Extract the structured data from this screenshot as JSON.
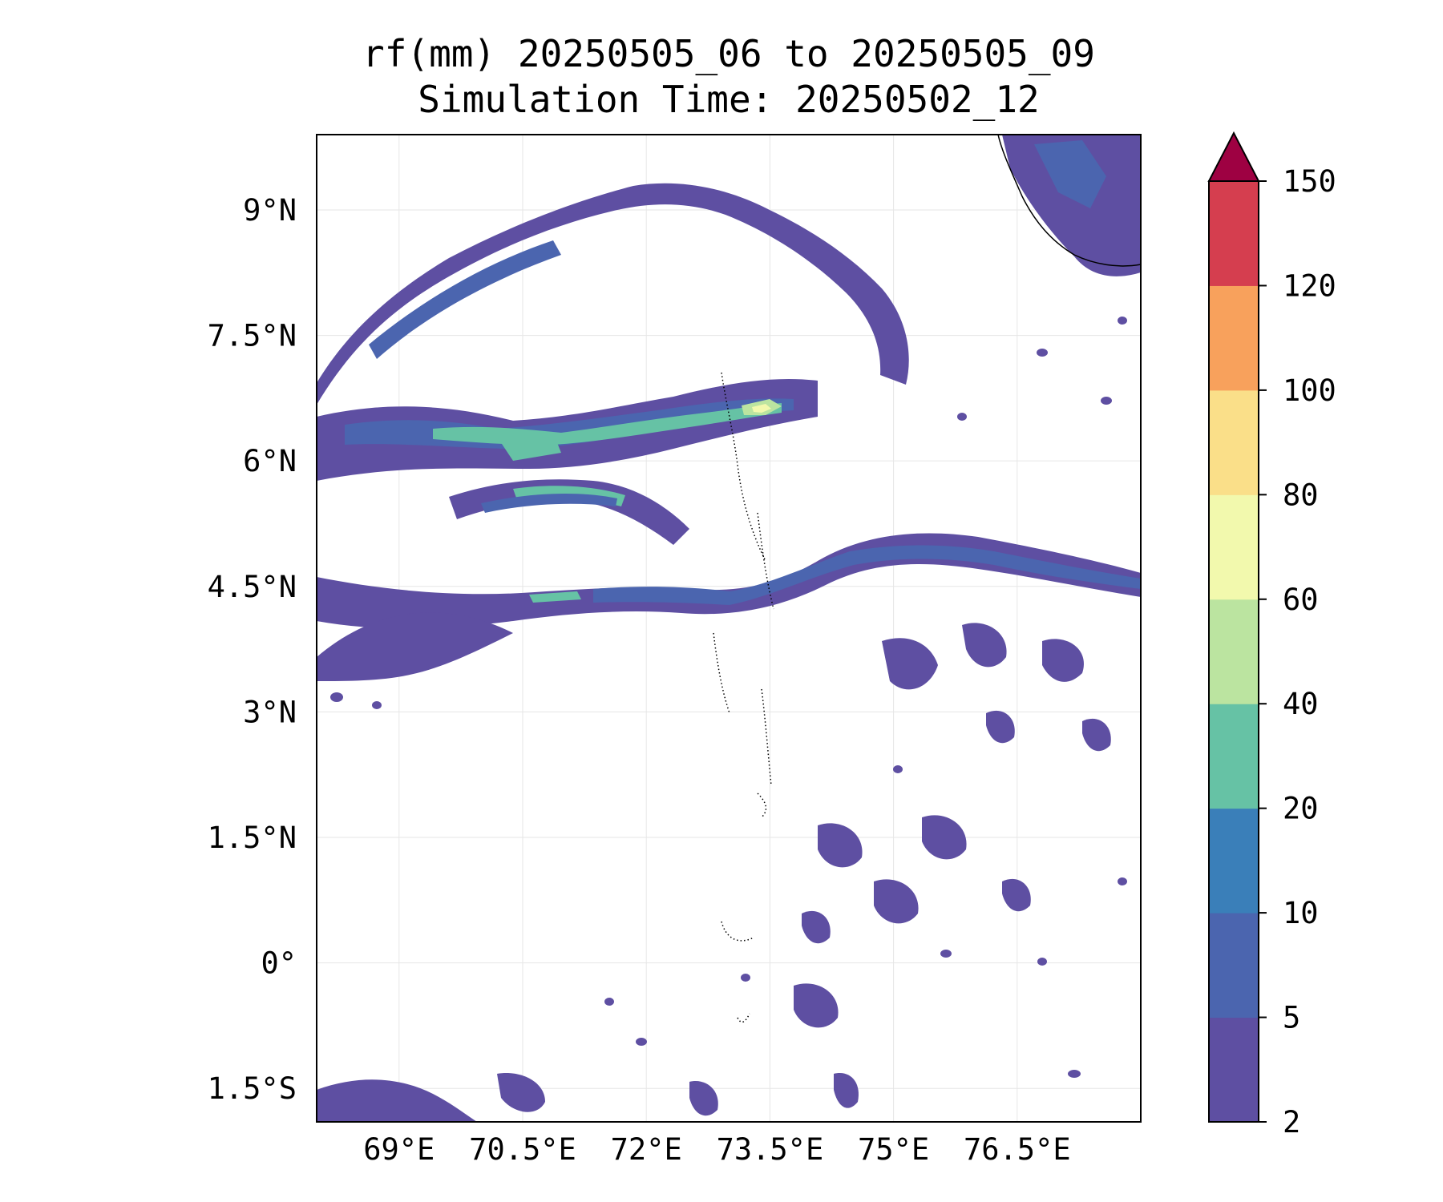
{
  "title": {
    "line1": "rf(mm) 20250505_06 to 20250505_09",
    "line2": "Simulation Time: 20250502_12"
  },
  "map": {
    "lon_range": [
      68.0,
      78.0
    ],
    "lat_range": [
      -1.9,
      9.9
    ],
    "x_ticks": [
      {
        "value": 69.0,
        "label": "69°E"
      },
      {
        "value": 70.5,
        "label": "70.5°E"
      },
      {
        "value": 72.0,
        "label": "72°E"
      },
      {
        "value": 73.5,
        "label": "73.5°E"
      },
      {
        "value": 75.0,
        "label": "75°E"
      },
      {
        "value": 76.5,
        "label": "76.5°E"
      }
    ],
    "y_ticks": [
      {
        "value": 9.0,
        "label": "9°N"
      },
      {
        "value": 7.5,
        "label": "7.5°N"
      },
      {
        "value": 6.0,
        "label": "6°N"
      },
      {
        "value": 4.5,
        "label": "4.5°N"
      },
      {
        "value": 3.0,
        "label": "3°N"
      },
      {
        "value": 1.5,
        "label": "1.5°N"
      },
      {
        "value": 0.0,
        "label": "0°"
      },
      {
        "value": -1.5,
        "label": "1.5°S"
      }
    ],
    "grid": true
  },
  "colorbar": {
    "levels": [
      "2",
      "5",
      "10",
      "20",
      "40",
      "60",
      "80",
      "100",
      "120",
      "150"
    ],
    "colors": [
      "#5e4fa2",
      "#4b65af",
      "#3a7fb9",
      "#66c2a5",
      "#bbe4a0",
      "#f2f9ad",
      "#fadf89",
      "#f8a15c",
      "#d53e4f"
    ],
    "extend_color": "#9e0142",
    "extend": "max"
  },
  "colors": {
    "level_2_5": "#5e4fa2",
    "level_5_10": "#4b65af",
    "level_20_40": "#66c2a5",
    "level_40_60": "#bbe4a0",
    "level_60_80": "#f2f9ad"
  }
}
